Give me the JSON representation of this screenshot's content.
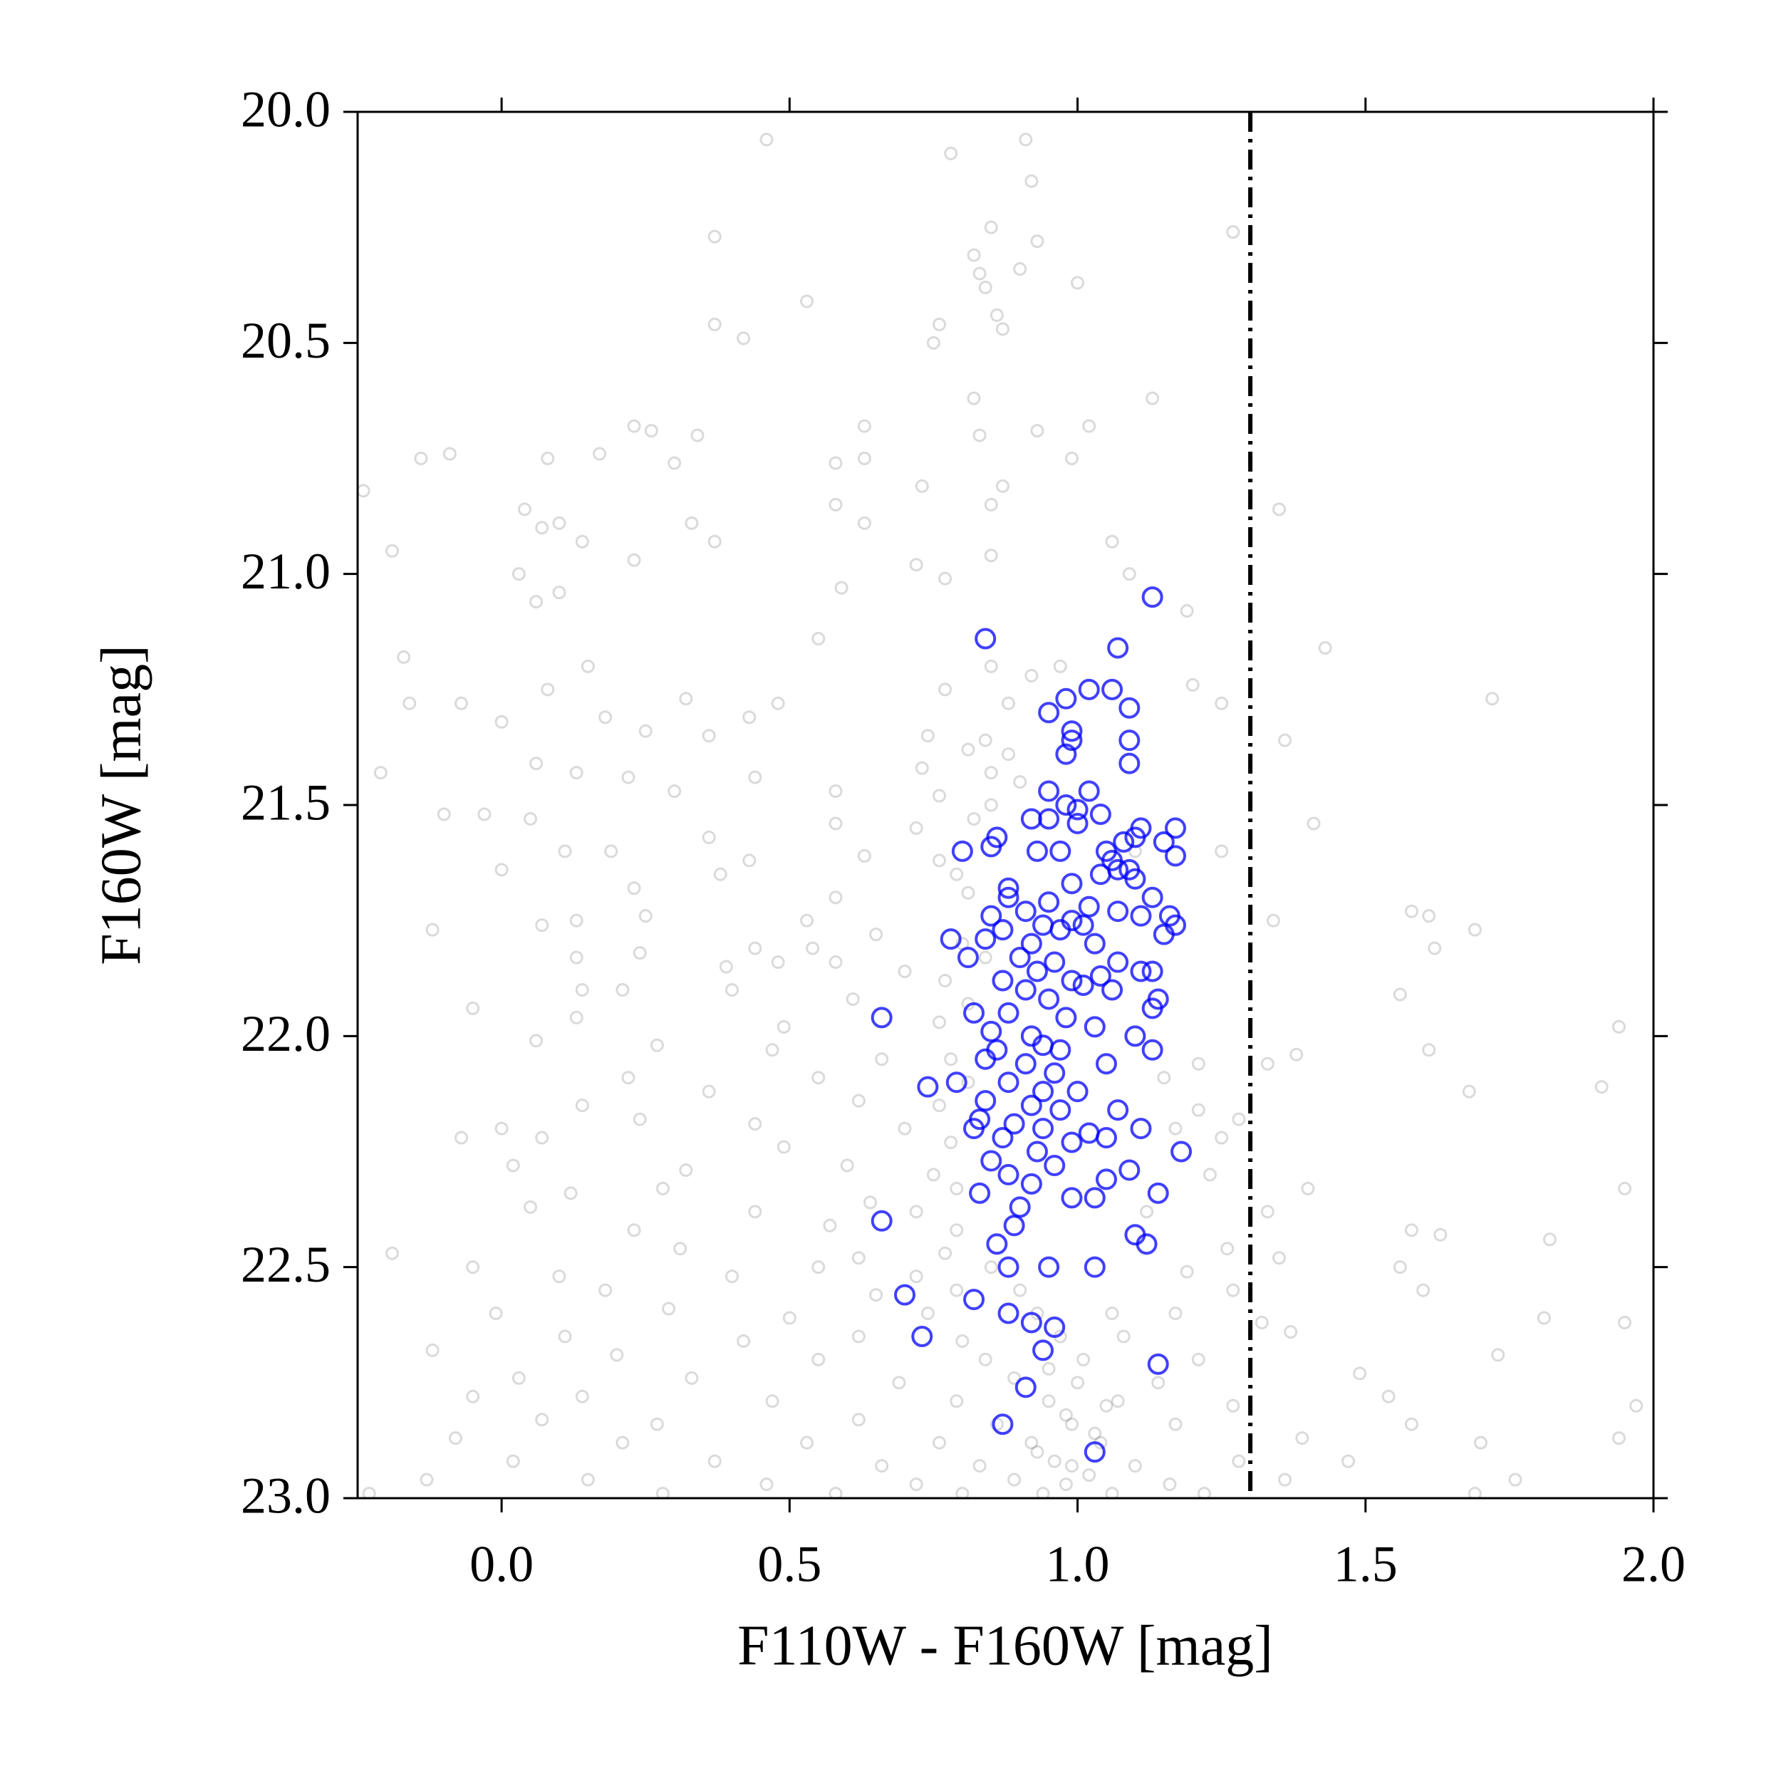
{
  "chart_data": {
    "type": "scatter",
    "xlabel": "F110W - F160W [mag]",
    "ylabel": "F160W [mag]",
    "xlim": [
      -0.25,
      2.0
    ],
    "ylim": [
      23.0,
      20.0
    ],
    "xticks": [
      {
        "value": 0,
        "label": "0.0"
      },
      {
        "value": 0.5,
        "label": "0.5"
      },
      {
        "value": 1,
        "label": "1.0"
      },
      {
        "value": 1.5,
        "label": "1.5"
      },
      {
        "value": 2,
        "label": "2.0"
      }
    ],
    "yticks": [
      {
        "value": 20,
        "label": "20.0"
      },
      {
        "value": 20.5,
        "label": "20.5"
      },
      {
        "value": 21,
        "label": "21.0"
      },
      {
        "value": 21.5,
        "label": "21.5"
      },
      {
        "value": 22,
        "label": "22.0"
      },
      {
        "value": 22.5,
        "label": "22.5"
      },
      {
        "value": 23,
        "label": "23.0"
      }
    ],
    "grid": false,
    "vline": {
      "x": 1.3,
      "style": "dashdot",
      "color": "#000000"
    },
    "series": [
      {
        "color": "#555555",
        "opacity": 0.22,
        "marker": "open-circle",
        "x": [
          0.46,
          0.78,
          0.91,
          0.92,
          0.85,
          0.37,
          0.93,
          1.27,
          0.82,
          0.83,
          0.9,
          0.84,
          1.0,
          0.53,
          0.86,
          0.37,
          0.42,
          0.76,
          0.87,
          0.75,
          0.82,
          1.13,
          0.23,
          0.26,
          0.34,
          0.63,
          0.83,
          0.93,
          1.02,
          -0.14,
          -0.09,
          0.08,
          0.17,
          0.3,
          0.58,
          0.63,
          0.99,
          0.73,
          0.87,
          -0.24,
          0.85,
          0.58,
          1.35,
          0.04,
          0.07,
          0.1,
          0.33,
          0.63,
          0.37,
          0.14,
          0.85,
          1.06,
          -0.19,
          0.23,
          0.72,
          0.03,
          0.77,
          1.09,
          0.1,
          0.59,
          0.06,
          1.19,
          0.55,
          0.85,
          0.97,
          -0.17,
          1.43,
          0.15,
          0.92,
          0.08,
          0.32,
          0.48,
          0.77,
          0.88,
          1.72,
          1.2,
          1.25,
          -0.16,
          -0.07,
          0.0,
          0.18,
          0.43,
          0.36,
          0.25,
          0.74,
          0.84,
          0.81,
          0.88,
          1.36,
          0.06,
          -0.21,
          0.22,
          0.13,
          0.73,
          0.44,
          0.85,
          0.9,
          0.58,
          0.3,
          0.76,
          0.85,
          -0.1,
          -0.03,
          0.05,
          0.36,
          1.41,
          0.58,
          0.72,
          0.82,
          0.11,
          0.19,
          0.43,
          0.63,
          0.76,
          1.1,
          1.25,
          0.0,
          0.38,
          0.79,
          0.23,
          0.58,
          0.81,
          0.13,
          0.25,
          0.53,
          0.65,
          1.34,
          1.58,
          1.61,
          1.69,
          0.07,
          -0.12,
          0.44,
          0.54,
          0.8,
          0.84,
          1.62,
          0.13,
          0.24,
          0.39,
          0.48,
          0.58,
          0.7,
          0.77,
          0.14,
          0.21,
          0.4,
          0.61,
          1.56,
          0.81,
          -0.05,
          0.13,
          0.49,
          0.76,
          1.94,
          0.06,
          0.27,
          0.47,
          0.66,
          1.38,
          1.61,
          0.78,
          1.21,
          1.33,
          0.22,
          0.55,
          0.81,
          1.15,
          1.91,
          0.36,
          0.62,
          1.68,
          0.14,
          0.76,
          1.21,
          0.0,
          0.24,
          0.44,
          0.7,
          1.17,
          1.28,
          -0.07,
          0.07,
          0.49,
          0.78,
          1.25,
          0.02,
          0.32,
          0.6,
          0.75,
          1.23,
          0.12,
          0.28,
          0.79,
          1.4,
          1.95,
          0.05,
          0.44,
          0.64,
          0.72,
          1.12,
          1.33,
          0.23,
          0.57,
          0.79,
          1.58,
          1.63,
          1.82,
          -0.19,
          0.31,
          0.62,
          0.77,
          1.26,
          1.35,
          -0.05,
          0.1,
          0.4,
          0.55,
          0.72,
          1.19,
          1.56,
          0.18,
          0.65,
          0.79,
          1.27,
          1.6,
          -0.01,
          0.29,
          0.5,
          0.74,
          1.17,
          1.32,
          1.81,
          1.95,
          0.11,
          0.42,
          0.62,
          0.8,
          1.08,
          1.37,
          -0.12,
          0.2,
          0.55,
          0.84,
          1.21,
          1.73,
          0.03,
          0.33,
          0.69,
          0.89,
          1.0,
          1.14,
          1.49,
          -0.05,
          0.14,
          0.47,
          0.79,
          0.95,
          1.07,
          1.27,
          1.54,
          1.97,
          0.07,
          0.27,
          0.62,
          0.86,
          0.99,
          1.17,
          1.58,
          -0.08,
          0.21,
          0.53,
          0.76,
          0.92,
          1.04,
          1.39,
          1.7,
          1.94,
          0.02,
          0.37,
          0.66,
          0.83,
          0.96,
          1.1,
          1.28,
          1.47,
          -0.13,
          0.15,
          0.46,
          0.72,
          0.89,
          0.98,
          1.02,
          1.16,
          1.36,
          1.76,
          -0.23,
          0.28,
          0.58,
          0.8,
          0.94,
          1.06,
          1.22,
          1.69,
          0.93,
          0.97,
          1.01,
          0.95,
          0.98,
          1.03,
          0.93,
          0.99,
          1.05,
          0.9,
          1.06,
          0.85
        ],
        "values": [
          20.06,
          20.09,
          20.06,
          20.15,
          20.25,
          20.27,
          20.28,
          20.26,
          20.31,
          20.35,
          20.34,
          20.38,
          20.37,
          20.41,
          20.44,
          20.46,
          20.49,
          20.46,
          20.47,
          20.5,
          20.62,
          20.62,
          20.68,
          20.69,
          20.7,
          20.68,
          20.7,
          20.69,
          20.68,
          20.75,
          20.74,
          20.75,
          20.74,
          20.76,
          20.76,
          20.75,
          20.75,
          20.81,
          20.81,
          20.82,
          20.85,
          20.85,
          20.86,
          20.86,
          20.9,
          20.89,
          20.89,
          20.89,
          20.93,
          20.93,
          20.96,
          20.93,
          20.95,
          20.97,
          20.98,
          21.0,
          21.01,
          21.0,
          21.04,
          21.03,
          21.06,
          21.08,
          21.14,
          21.2,
          21.2,
          21.18,
          21.16,
          21.2,
          21.22,
          21.25,
          21.27,
          21.28,
          21.25,
          21.28,
          21.27,
          21.24,
          21.28,
          21.28,
          21.28,
          21.32,
          21.31,
          21.31,
          21.35,
          21.34,
          21.35,
          21.36,
          21.38,
          21.39,
          21.36,
          21.41,
          21.43,
          21.44,
          21.43,
          21.42,
          21.44,
          21.43,
          21.45,
          21.47,
          21.47,
          21.48,
          21.5,
          21.52,
          21.52,
          21.53,
          21.57,
          21.54,
          21.54,
          21.55,
          21.53,
          21.6,
          21.6,
          21.62,
          21.61,
          21.62,
          21.6,
          21.6,
          21.64,
          21.65,
          21.65,
          21.68,
          21.7,
          21.69,
          21.75,
          21.74,
          21.75,
          21.78,
          21.75,
          21.73,
          21.74,
          21.77,
          21.76,
          21.77,
          21.81,
          21.81,
          21.8,
          21.83,
          21.81,
          21.83,
          21.82,
          21.85,
          21.84,
          21.84,
          21.86,
          21.88,
          21.9,
          21.9,
          21.9,
          21.92,
          21.91,
          21.93,
          21.94,
          21.96,
          21.98,
          21.97,
          21.98,
          22.01,
          22.02,
          22.03,
          22.05,
          22.04,
          22.03,
          22.05,
          22.06,
          22.06,
          22.09,
          22.09,
          22.1,
          22.09,
          22.11,
          22.12,
          22.14,
          22.12,
          22.15,
          22.15,
          22.16,
          22.2,
          22.18,
          22.19,
          22.2,
          22.2,
          22.18,
          22.22,
          22.22,
          22.24,
          22.23,
          22.22,
          22.28,
          22.29,
          22.28,
          22.3,
          22.3,
          22.34,
          22.33,
          22.33,
          22.33,
          22.33,
          22.37,
          22.38,
          22.36,
          22.38,
          22.38,
          22.38,
          22.42,
          22.41,
          22.42,
          22.42,
          22.43,
          22.44,
          22.47,
          22.46,
          22.48,
          22.47,
          22.46,
          22.48,
          22.5,
          22.52,
          22.52,
          22.5,
          22.52,
          22.51,
          22.5,
          22.55,
          22.56,
          22.55,
          22.55,
          22.55,
          22.6,
          22.59,
          22.61,
          22.6,
          22.6,
          22.62,
          22.61,
          22.62,
          22.65,
          22.66,
          22.65,
          22.66,
          22.65,
          22.64,
          22.68,
          22.69,
          22.7,
          22.7,
          22.7,
          22.69,
          22.74,
          22.74,
          22.75,
          22.74,
          22.75,
          22.75,
          22.73,
          22.78,
          22.78,
          22.79,
          22.79,
          22.79,
          22.79,
          22.8,
          22.78,
          22.8,
          22.83,
          22.84,
          22.83,
          22.84,
          22.84,
          22.84,
          22.84,
          22.87,
          22.88,
          22.88,
          22.88,
          22.88,
          22.88,
          22.87,
          22.88,
          22.87,
          22.92,
          22.92,
          22.93,
          22.93,
          22.92,
          22.93,
          22.92,
          22.92,
          22.96,
          22.96,
          22.97,
          22.97,
          22.96,
          22.97,
          22.95,
          22.97,
          22.96,
          22.96,
          22.99,
          22.99,
          22.99,
          22.99,
          22.99,
          22.99,
          22.99,
          22.99,
          22.6,
          22.65,
          22.7,
          22.72,
          22.82,
          22.86,
          22.9,
          22.93,
          22.8,
          22.55,
          22.6,
          22.5
        ]
      },
      {
        "color": "#0000ff",
        "opacity": 0.75,
        "marker": "open-circle",
        "x": [
          1.13,
          0.84,
          1.07,
          1.02,
          1.06,
          0.98,
          1.09,
          0.95,
          0.99,
          0.99,
          1.09,
          0.98,
          1.09,
          0.95,
          1.02,
          0.98,
          1.0,
          1.04,
          0.92,
          0.95,
          1.0,
          1.11,
          1.17,
          1.1,
          0.86,
          1.08,
          1.15,
          0.85,
          0.8,
          0.93,
          0.97,
          1.05,
          1.17,
          1.06,
          1.07,
          1.09,
          1.04,
          1.1,
          0.99,
          0.88,
          0.88,
          1.13,
          0.95,
          1.02,
          0.91,
          1.07,
          0.85,
          0.99,
          1.11,
          1.16,
          0.94,
          1.01,
          0.87,
          0.97,
          1.17,
          1.15,
          0.84,
          0.78,
          0.92,
          1.03,
          0.81,
          0.9,
          0.96,
          1.07,
          0.93,
          1.04,
          0.99,
          1.11,
          1.13,
          0.87,
          1.01,
          0.91,
          1.06,
          0.95,
          1.14,
          0.88,
          0.82,
          0.98,
          0.66,
          1.13,
          1.03,
          0.85,
          0.92,
          1.1,
          0.94,
          0.86,
          0.97,
          1.13,
          0.84,
          0.91,
          1.05,
          0.96,
          0.88,
          0.79,
          0.74,
          0.94,
          1.0,
          0.84,
          0.92,
          0.97,
          1.07,
          0.83,
          0.89,
          0.94,
          0.82,
          1.02,
          1.11,
          0.87,
          0.99,
          1.05,
          0.93,
          1.18,
          0.85,
          0.96,
          1.09,
          0.88,
          0.92,
          1.05,
          0.83,
          1.14,
          0.99,
          1.03,
          0.9,
          0.66,
          0.89,
          1.1,
          0.86,
          1.12,
          0.88,
          0.95,
          1.03,
          0.7,
          0.82,
          0.88,
          0.92,
          0.96,
          0.73,
          0.94,
          1.14,
          0.91,
          0.87,
          1.03
        ],
        "values": [
          21.05,
          21.14,
          21.16,
          21.25,
          21.25,
          21.27,
          21.29,
          21.3,
          21.34,
          21.36,
          21.36,
          21.39,
          21.41,
          21.47,
          21.47,
          21.5,
          21.51,
          21.52,
          21.53,
          21.53,
          21.54,
          21.55,
          21.55,
          21.57,
          21.57,
          21.58,
          21.58,
          21.59,
          21.6,
          21.6,
          21.6,
          21.6,
          21.61,
          21.62,
          21.64,
          21.64,
          21.65,
          21.66,
          21.67,
          21.68,
          21.7,
          21.7,
          21.71,
          21.72,
          21.73,
          21.73,
          21.74,
          21.75,
          21.74,
          21.74,
          21.76,
          21.76,
          21.77,
          21.77,
          21.76,
          21.78,
          21.79,
          21.79,
          21.8,
          21.8,
          21.83,
          21.83,
          21.84,
          21.84,
          21.86,
          21.87,
          21.88,
          21.86,
          21.86,
          21.88,
          21.89,
          21.9,
          21.9,
          21.92,
          21.92,
          21.95,
          21.95,
          21.96,
          21.96,
          21.94,
          21.98,
          21.99,
          22.0,
          22.0,
          22.02,
          22.03,
          22.03,
          22.03,
          22.05,
          22.06,
          22.06,
          22.08,
          22.1,
          22.1,
          22.11,
          22.12,
          22.12,
          22.14,
          22.15,
          22.16,
          22.16,
          22.18,
          22.19,
          22.2,
          22.2,
          22.21,
          22.2,
          22.22,
          22.23,
          22.22,
          22.25,
          22.25,
          22.27,
          22.28,
          22.29,
          22.3,
          22.32,
          22.31,
          22.34,
          22.34,
          22.35,
          22.35,
          22.37,
          22.4,
          22.41,
          22.43,
          22.45,
          22.45,
          22.5,
          22.5,
          22.5,
          22.56,
          22.57,
          22.6,
          22.62,
          22.63,
          22.65,
          22.68,
          22.71,
          22.76,
          22.84,
          22.9
        ]
      }
    ]
  }
}
